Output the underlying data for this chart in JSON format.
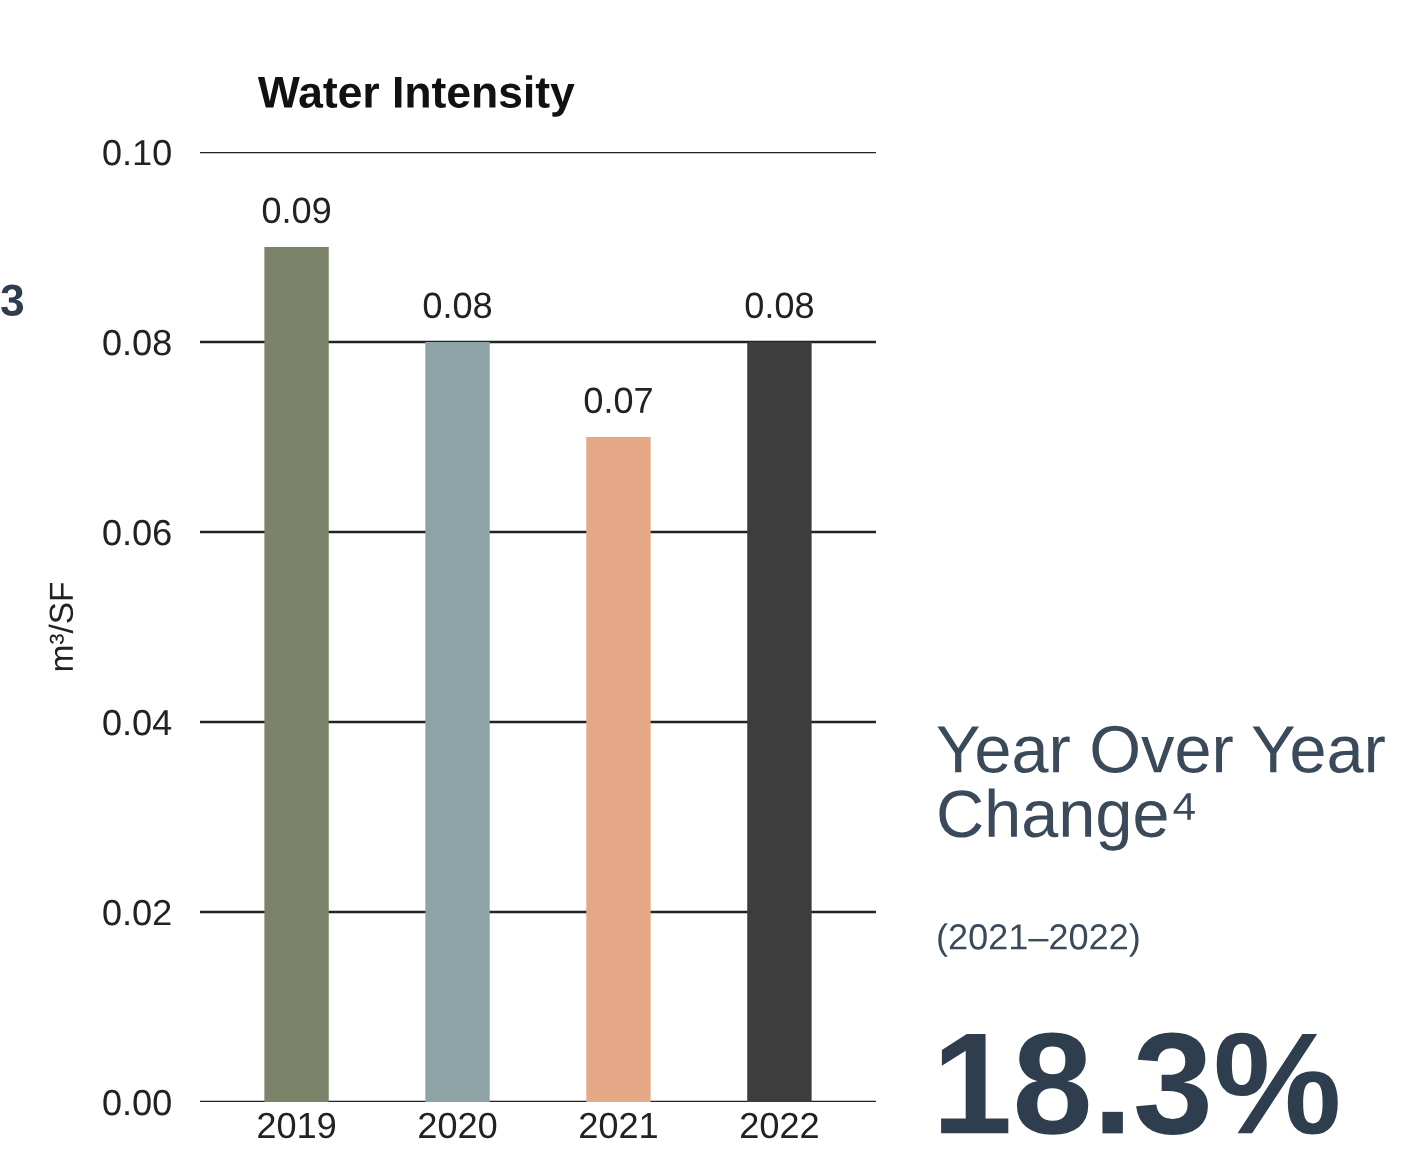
{
  "chart_data": {
    "type": "bar",
    "title": "Water Intensity",
    "ylabel": "m³/SF",
    "categories": [
      "2019",
      "2020",
      "2021",
      "2022"
    ],
    "values": [
      0.09,
      0.08,
      0.07,
      0.08
    ],
    "colors": [
      "#7b8469",
      "#8ea3a6",
      "#e6a987",
      "#3d3d3d"
    ],
    "ylim": [
      0,
      0.1
    ],
    "yticks": [
      {
        "value": 0,
        "label": "0.00"
      },
      0.02,
      0.04,
      0.06,
      0.08,
      {
        "value": 0.1,
        "label": "0.10"
      }
    ],
    "grid": "y",
    "data_labels": true,
    "legend": false,
    "annotations": [
      "3",
      "Year Over Year\nChange⁴",
      "(2021–2022)",
      "18.3%"
    ]
  }
}
